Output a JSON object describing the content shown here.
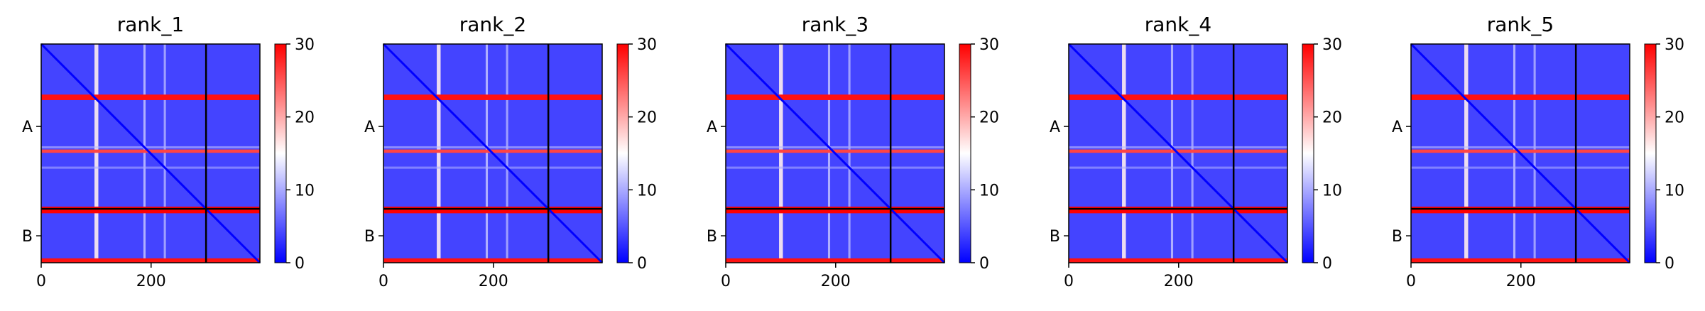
{
  "chart_data": {
    "type": "heatmap",
    "chain_labels": [
      "A",
      "B"
    ],
    "chain_lengths": [
      300,
      98
    ],
    "x_ticks": [
      0,
      200
    ],
    "colorbar": {
      "min": 0,
      "max": 30,
      "ticks": [
        0,
        10,
        20,
        30
      ],
      "colormap": "bwr"
    },
    "panels": [
      {
        "title": "rank_1"
      },
      {
        "title": "rank_2"
      },
      {
        "title": "rank_3"
      },
      {
        "title": "rank_4"
      },
      {
        "title": "rank_5"
      }
    ],
    "high_error_bands": [
      {
        "start": 92,
        "end": 102,
        "level": 29
      },
      {
        "start": 192,
        "end": 198,
        "level": 26
      },
      {
        "start": 296,
        "end": 308,
        "level": 30
      },
      {
        "start": 390,
        "end": 398,
        "level": 29
      }
    ],
    "white_stripes": [
      {
        "start": 97,
        "end": 104,
        "level": 16
      },
      {
        "start": 186,
        "end": 190,
        "level": 11
      },
      {
        "start": 223,
        "end": 227,
        "level": 10
      }
    ],
    "background_level": 4,
    "diagonal_level": 0
  }
}
